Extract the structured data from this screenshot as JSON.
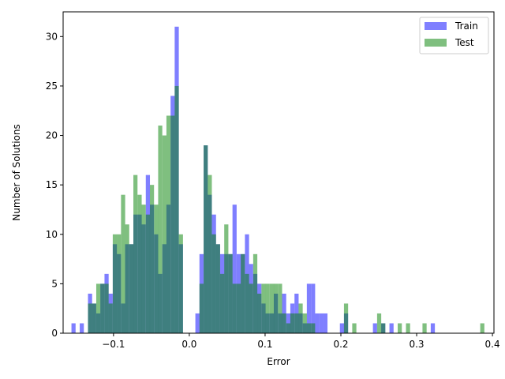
{
  "chart_data": {
    "type": "histogram",
    "xlabel": "Error",
    "ylabel": "Number of Solutions",
    "xlim": [
      -0.1665,
      0.402
    ],
    "ylim": [
      0,
      32.5
    ],
    "x_ticks": [
      -0.1,
      0.0,
      0.1,
      0.2,
      0.3,
      0.4
    ],
    "x_tick_labels": [
      "−0.1",
      "0.0",
      "0.1",
      "0.2",
      "0.3",
      "0.4"
    ],
    "y_ticks": [
      0,
      5,
      10,
      15,
      20,
      25,
      30
    ],
    "y_tick_labels": [
      "0",
      "5",
      "10",
      "15",
      "20",
      "25",
      "30"
    ],
    "legend_position": "top-right",
    "grid": false,
    "series": [
      {
        "name": "Train",
        "color": "#0000ff",
        "opacity": 0.5,
        "bin_width": 0.00545,
        "bins": [
          [
            -0.1555,
            1
          ],
          [
            -0.1446,
            1
          ],
          [
            -0.1337,
            4
          ],
          [
            -0.1283,
            3
          ],
          [
            -0.1228,
            2
          ],
          [
            -0.1174,
            5
          ],
          [
            -0.1119,
            6
          ],
          [
            -0.1065,
            4
          ],
          [
            -0.101,
            9
          ],
          [
            -0.0956,
            8
          ],
          [
            -0.0901,
            3
          ],
          [
            -0.0847,
            9
          ],
          [
            -0.0792,
            9
          ],
          [
            -0.0738,
            12
          ],
          [
            -0.0683,
            12
          ],
          [
            -0.0629,
            11
          ],
          [
            -0.0574,
            16
          ],
          [
            -0.052,
            13
          ],
          [
            -0.0465,
            10
          ],
          [
            -0.0411,
            6
          ],
          [
            -0.0356,
            9
          ],
          [
            -0.0302,
            13
          ],
          [
            -0.0247,
            24
          ],
          [
            -0.0193,
            31
          ],
          [
            -0.0138,
            9
          ],
          [
            0.008,
            2
          ],
          [
            0.0134,
            8
          ],
          [
            0.0189,
            19
          ],
          [
            0.0243,
            14
          ],
          [
            0.0298,
            12
          ],
          [
            0.0352,
            9
          ],
          [
            0.0407,
            8
          ],
          [
            0.0461,
            8
          ],
          [
            0.0516,
            8
          ],
          [
            0.057,
            13
          ],
          [
            0.0625,
            8
          ],
          [
            0.0679,
            8
          ],
          [
            0.0734,
            10
          ],
          [
            0.0788,
            7
          ],
          [
            0.0843,
            6
          ],
          [
            0.0897,
            5
          ],
          [
            0.0952,
            3
          ],
          [
            0.1006,
            2
          ],
          [
            0.1061,
            2
          ],
          [
            0.1115,
            4
          ],
          [
            0.117,
            2
          ],
          [
            0.1224,
            4
          ],
          [
            0.1279,
            2
          ],
          [
            0.1333,
            3
          ],
          [
            0.1388,
            4
          ],
          [
            0.1442,
            2
          ],
          [
            0.1497,
            1
          ],
          [
            0.1551,
            5
          ],
          [
            0.1606,
            5
          ],
          [
            0.166,
            2
          ],
          [
            0.1715,
            2
          ],
          [
            0.1769,
            2
          ],
          [
            0.1987,
            1
          ],
          [
            0.2041,
            2
          ],
          [
            0.2423,
            1
          ],
          [
            0.2532,
            1
          ],
          [
            0.2641,
            1
          ],
          [
            0.3186,
            1
          ]
        ]
      },
      {
        "name": "Test",
        "color": "#008000",
        "opacity": 0.5,
        "bin_width": 0.00545,
        "bins": [
          [
            -0.1337,
            3
          ],
          [
            -0.1283,
            3
          ],
          [
            -0.1228,
            5
          ],
          [
            -0.1174,
            5
          ],
          [
            -0.1119,
            5
          ],
          [
            -0.1065,
            3
          ],
          [
            -0.101,
            10
          ],
          [
            -0.0956,
            10
          ],
          [
            -0.0901,
            14
          ],
          [
            -0.0847,
            11
          ],
          [
            -0.0792,
            9
          ],
          [
            -0.0738,
            16
          ],
          [
            -0.0683,
            14
          ],
          [
            -0.0629,
            13
          ],
          [
            -0.0574,
            12
          ],
          [
            -0.052,
            15
          ],
          [
            -0.0465,
            13
          ],
          [
            -0.0411,
            21
          ],
          [
            -0.0356,
            20
          ],
          [
            -0.0302,
            22
          ],
          [
            -0.0247,
            22
          ],
          [
            -0.0193,
            25
          ],
          [
            -0.0138,
            10
          ],
          [
            0.0134,
            5
          ],
          [
            0.0189,
            19
          ],
          [
            0.0243,
            16
          ],
          [
            0.0298,
            10
          ],
          [
            0.0352,
            9
          ],
          [
            0.0407,
            6
          ],
          [
            0.0461,
            11
          ],
          [
            0.0516,
            8
          ],
          [
            0.057,
            5
          ],
          [
            0.0625,
            5
          ],
          [
            0.0679,
            8
          ],
          [
            0.0734,
            6
          ],
          [
            0.0788,
            5
          ],
          [
            0.0843,
            8
          ],
          [
            0.0897,
            4
          ],
          [
            0.0952,
            5
          ],
          [
            0.1006,
            5
          ],
          [
            0.1061,
            5
          ],
          [
            0.1115,
            5
          ],
          [
            0.117,
            5
          ],
          [
            0.1224,
            2
          ],
          [
            0.1279,
            1
          ],
          [
            0.1333,
            2
          ],
          [
            0.1388,
            2
          ],
          [
            0.1442,
            3
          ],
          [
            0.1497,
            2
          ],
          [
            0.1551,
            1
          ],
          [
            0.1606,
            1
          ],
          [
            0.2041,
            3
          ],
          [
            0.215,
            1
          ],
          [
            0.2478,
            2
          ],
          [
            0.2532,
            1
          ],
          [
            0.275,
            1
          ],
          [
            0.2859,
            1
          ],
          [
            0.3077,
            1
          ],
          [
            0.3839,
            1
          ]
        ]
      }
    ]
  }
}
